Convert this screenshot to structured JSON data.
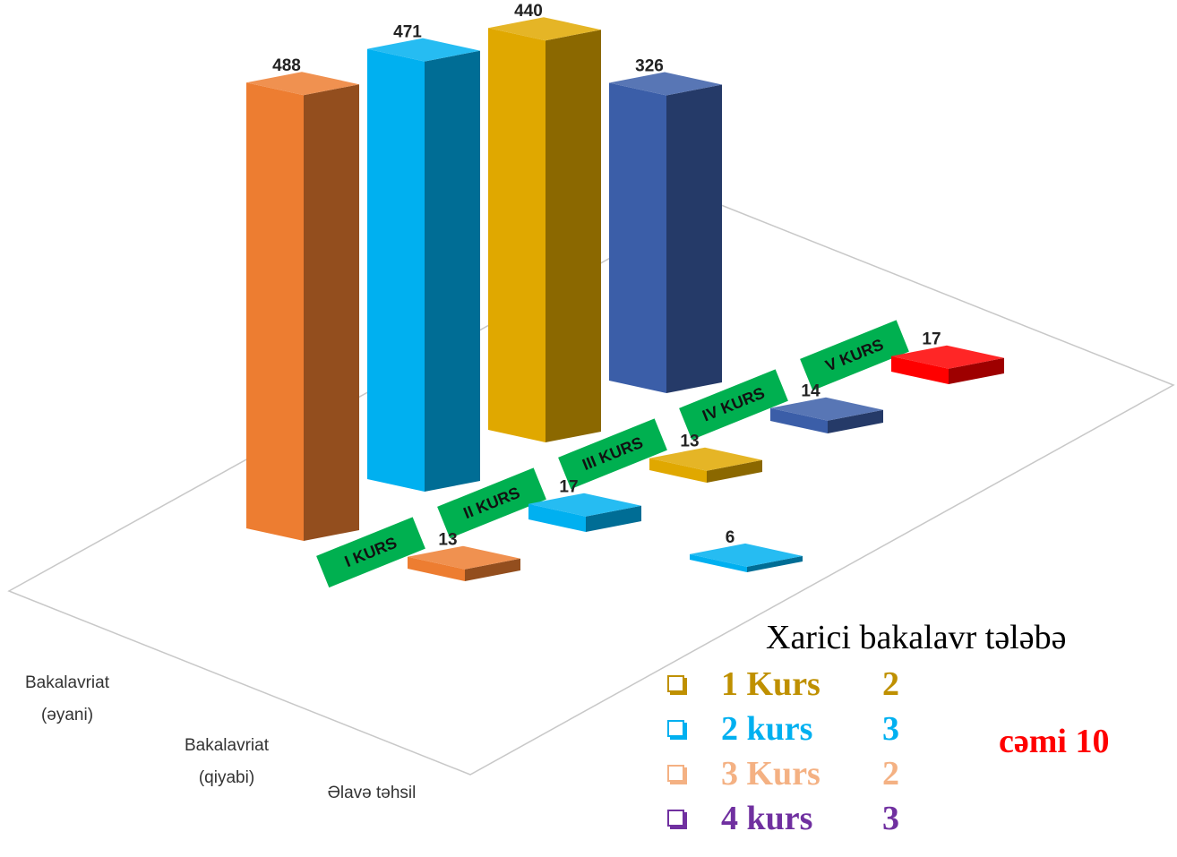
{
  "chart_data": {
    "type": "bar3d",
    "categories": [
      "Bakalavriat (əyani)",
      "Bakalavriat (qiyabi)",
      "Əlavə təhsil"
    ],
    "series": [
      {
        "name": "I KURS",
        "color": "#ed7d31",
        "values": [
          488,
          13,
          null
        ]
      },
      {
        "name": "II KURS",
        "color": "#00b0f0",
        "values": [
          471,
          17,
          6
        ]
      },
      {
        "name": "III KURS",
        "color": "#e0a800",
        "values": [
          440,
          13,
          null
        ]
      },
      {
        "name": "IV KURS",
        "color": "#3b5ea8",
        "values": [
          326,
          14,
          null
        ]
      },
      {
        "name": "V KURS",
        "color": "#ff0000",
        "values": [
          null,
          17,
          null
        ]
      }
    ],
    "annotation": {
      "title": "Xarici bakalavr tələbə",
      "items": [
        {
          "label": "1 Kurs",
          "count": 2,
          "color": "#bf9000"
        },
        {
          "label": "2 kurs",
          "count": 3,
          "color": "#00b0f0"
        },
        {
          "label": "3 Kurs",
          "count": 2,
          "color": "#f4b183"
        },
        {
          "label": "4 kurs",
          "count": 3,
          "color": "#7030a0"
        }
      ],
      "total": "cəmi 10",
      "total_color": "#ff0000"
    }
  }
}
